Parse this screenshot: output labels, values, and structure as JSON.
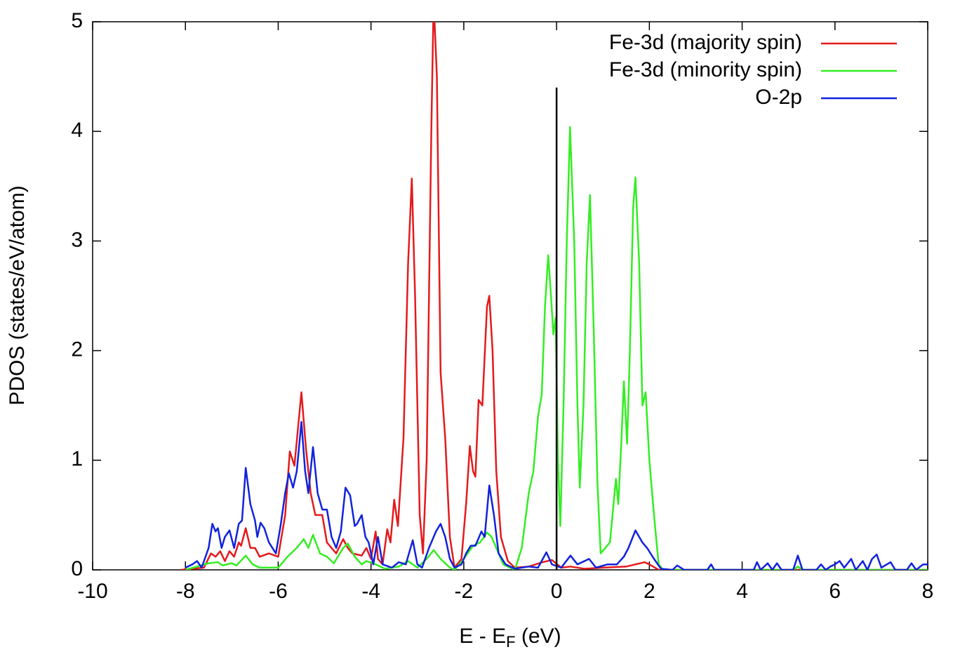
{
  "chart_data": {
    "type": "line",
    "xlabel": "E - E",
    "xlabel_subscript": "F",
    "xlabel_suffix": " (eV)",
    "ylabel": "PDOS (states/eV/atom)",
    "xlim": [
      -10,
      8
    ],
    "ylim": [
      0,
      5
    ],
    "xticks": [
      -10,
      -8,
      -6,
      -4,
      -2,
      0,
      2,
      4,
      6,
      8
    ],
    "yticks": [
      0,
      1,
      2,
      3,
      4,
      5
    ],
    "legend": "top-right",
    "vline": {
      "x": 0,
      "ymax": 4.4,
      "color": "#000000"
    },
    "series": [
      {
        "name": "Fe-3d (majority spin)",
        "color": "#e41a1c",
        "x": [
          -8.1,
          -7.6,
          -7.45,
          -7.35,
          -7.25,
          -7.15,
          -7.05,
          -6.95,
          -6.85,
          -6.8,
          -6.7,
          -6.6,
          -6.5,
          -6.4,
          -6.2,
          -6.0,
          -5.85,
          -5.75,
          -5.65,
          -5.5,
          -5.4,
          -5.3,
          -5.2,
          -5.05,
          -4.95,
          -4.85,
          -4.75,
          -4.6,
          -4.5,
          -4.4,
          -4.2,
          -4.1,
          -4.0,
          -3.9,
          -3.85,
          -3.75,
          -3.65,
          -3.58,
          -3.5,
          -3.42,
          -3.3,
          -3.2,
          -3.12,
          -3.05,
          -2.95,
          -2.88,
          -2.8,
          -2.7,
          -2.65,
          -2.58,
          -2.5,
          -2.4,
          -2.3,
          -2.2,
          -2.05,
          -1.95,
          -1.87,
          -1.8,
          -1.75,
          -1.68,
          -1.6,
          -1.5,
          -1.45,
          -1.38,
          -1.3,
          -1.2,
          -1.05,
          -0.9,
          -0.6,
          -0.3,
          -0.1,
          0.1,
          0.3,
          0.6,
          1.0,
          1.5,
          1.7,
          1.9,
          2.0,
          2.2,
          8
        ],
        "values": [
          0,
          0.02,
          0.15,
          0.12,
          0.17,
          0.08,
          0.17,
          0.12,
          0.25,
          0.22,
          0.38,
          0.2,
          0.2,
          0.12,
          0.15,
          0.12,
          0.5,
          1.08,
          0.95,
          1.62,
          1.1,
          0.7,
          0.5,
          0.5,
          0.25,
          0.2,
          0.15,
          0.28,
          0.2,
          0.15,
          0.13,
          0.2,
          0.1,
          0.35,
          0.1,
          0.05,
          0.37,
          0.25,
          0.64,
          0.4,
          1.2,
          2.8,
          3.57,
          2.5,
          0.5,
          0.15,
          1.0,
          4.0,
          5.2,
          4.5,
          1.8,
          1.2,
          0.3,
          0.02,
          0.1,
          0.6,
          1.13,
          0.9,
          0.85,
          1.55,
          1.5,
          2.4,
          2.5,
          2.0,
          0.9,
          0.3,
          0.08,
          0.02,
          0.03,
          0.07,
          0.09,
          0.02,
          0.03,
          0.01,
          0.02,
          0.03,
          0.05,
          0.07,
          0.05,
          0,
          0
        ]
      },
      {
        "name": "Fe-3d (minority spin)",
        "color": "#33ee22",
        "x": [
          -8.0,
          -7.5,
          -7.3,
          -7.2,
          -7.0,
          -6.9,
          -6.7,
          -6.55,
          -6.4,
          -6.0,
          -5.8,
          -5.6,
          -5.45,
          -5.35,
          -5.25,
          -5.1,
          -4.95,
          -4.8,
          -4.6,
          -4.5,
          -4.35,
          -4.2,
          -4.1,
          -3.9,
          -3.7,
          -3.4,
          -3.2,
          -3.0,
          -2.8,
          -2.65,
          -2.5,
          -2.3,
          -2.2,
          -2.0,
          -1.8,
          -1.65,
          -1.5,
          -1.4,
          -1.3,
          -1.15,
          -0.9,
          -0.75,
          -0.6,
          -0.5,
          -0.4,
          -0.32,
          -0.25,
          -0.18,
          -0.12,
          -0.07,
          -0.02,
          0.03,
          0.08,
          0.15,
          0.22,
          0.29,
          0.38,
          0.45,
          0.5,
          0.58,
          0.65,
          0.72,
          0.8,
          0.88,
          0.95,
          1.05,
          1.15,
          1.25,
          1.28,
          1.33,
          1.4,
          1.45,
          1.52,
          1.58,
          1.65,
          1.7,
          1.78,
          1.85,
          1.92,
          2.0,
          2.1,
          2.2,
          2.3,
          5.1,
          5.2,
          5.3,
          8
        ],
        "values": [
          0,
          0.06,
          0.07,
          0.04,
          0.06,
          0.04,
          0.13,
          0.05,
          0.02,
          0.02,
          0.12,
          0.2,
          0.28,
          0.2,
          0.32,
          0.15,
          0.12,
          0.06,
          0.2,
          0.24,
          0.12,
          0.05,
          0.08,
          0.05,
          0.01,
          0.03,
          0.08,
          0.02,
          0.1,
          0.18,
          0.1,
          0.02,
          0,
          0.1,
          0.22,
          0.25,
          0.34,
          0.3,
          0.2,
          0.05,
          0,
          0.2,
          0.7,
          0.9,
          1.4,
          1.6,
          2.4,
          2.87,
          2.5,
          2.15,
          2.3,
          1.0,
          0.4,
          1.5,
          3.0,
          4.04,
          3.0,
          1.5,
          0.75,
          1.5,
          2.8,
          3.42,
          2.2,
          0.8,
          0.15,
          0.2,
          0.25,
          0.7,
          0.83,
          0.6,
          1.2,
          1.72,
          1.15,
          2.0,
          3.3,
          3.58,
          2.8,
          1.5,
          1.62,
          1.0,
          0.5,
          0.05,
          0,
          0,
          0.03,
          0,
          0
        ]
      },
      {
        "name": "O-2p",
        "color": "#1122dd",
        "x": [
          -8.0,
          -7.85,
          -7.75,
          -7.65,
          -7.5,
          -7.42,
          -7.35,
          -7.3,
          -7.22,
          -7.15,
          -7.05,
          -6.95,
          -6.85,
          -6.78,
          -6.7,
          -6.6,
          -6.5,
          -6.45,
          -6.38,
          -6.3,
          -6.2,
          -6.05,
          -5.95,
          -5.85,
          -5.77,
          -5.68,
          -5.6,
          -5.5,
          -5.42,
          -5.35,
          -5.25,
          -5.15,
          -5.05,
          -4.95,
          -4.85,
          -4.75,
          -4.65,
          -4.55,
          -4.45,
          -4.35,
          -4.3,
          -4.2,
          -4.12,
          -4.05,
          -3.95,
          -3.85,
          -3.75,
          -3.55,
          -3.4,
          -3.25,
          -3.1,
          -3.0,
          -2.9,
          -2.75,
          -2.6,
          -2.5,
          -2.4,
          -2.3,
          -2.2,
          -2.05,
          -1.95,
          -1.85,
          -1.75,
          -1.62,
          -1.55,
          -1.45,
          -1.35,
          -1.25,
          -1.1,
          -0.9,
          -0.6,
          -0.4,
          -0.22,
          -0.1,
          0.1,
          0.3,
          0.45,
          0.7,
          0.85,
          1.1,
          1.3,
          1.45,
          1.55,
          1.7,
          1.85,
          1.95,
          2.1,
          2.25,
          2.5,
          2.6,
          2.75,
          3.25,
          3.33,
          3.4,
          4.25,
          4.32,
          4.4,
          4.55,
          4.65,
          4.75,
          4.85,
          5.1,
          5.2,
          5.3,
          5.6,
          5.7,
          5.8,
          5.9,
          6.0,
          6.1,
          6.2,
          6.35,
          6.45,
          6.6,
          6.7,
          6.8,
          6.9,
          7.0,
          7.2,
          7.3,
          7.55,
          7.65,
          7.75,
          7.9,
          8.0
        ],
        "values": [
          0.02,
          0.05,
          0.08,
          0.02,
          0.2,
          0.42,
          0.35,
          0.38,
          0.2,
          0.3,
          0.36,
          0.2,
          0.42,
          0.45,
          0.93,
          0.6,
          0.45,
          0.3,
          0.43,
          0.38,
          0.25,
          0.15,
          0.4,
          0.7,
          0.88,
          0.75,
          0.9,
          1.35,
          0.9,
          0.7,
          1.12,
          0.7,
          0.55,
          0.55,
          0.3,
          0.2,
          0.35,
          0.75,
          0.68,
          0.4,
          0.42,
          0.5,
          0.3,
          0.25,
          0.05,
          0.3,
          0.05,
          0.02,
          0.07,
          0.05,
          0.27,
          0.05,
          0.02,
          0.2,
          0.35,
          0.42,
          0.3,
          0.1,
          0.02,
          0.05,
          0.15,
          0.22,
          0.22,
          0.35,
          0.3,
          0.77,
          0.5,
          0.15,
          0.05,
          0.01,
          0.03,
          0.02,
          0.16,
          0.05,
          0.02,
          0.13,
          0.05,
          0.1,
          0.02,
          0.05,
          0.05,
          0.12,
          0.2,
          0.36,
          0.25,
          0.2,
          0.1,
          0.01,
          0,
          0.04,
          0,
          0,
          0.05,
          0,
          0,
          0.07,
          0,
          0.06,
          0,
          0.06,
          0,
          0,
          0.13,
          0,
          0,
          0.05,
          0,
          0.03,
          0.05,
          0.08,
          0.02,
          0.1,
          0,
          0.08,
          0,
          0.1,
          0.14,
          0.02,
          0.07,
          0,
          0,
          0.06,
          0,
          0.05,
          0.05
        ]
      }
    ]
  }
}
